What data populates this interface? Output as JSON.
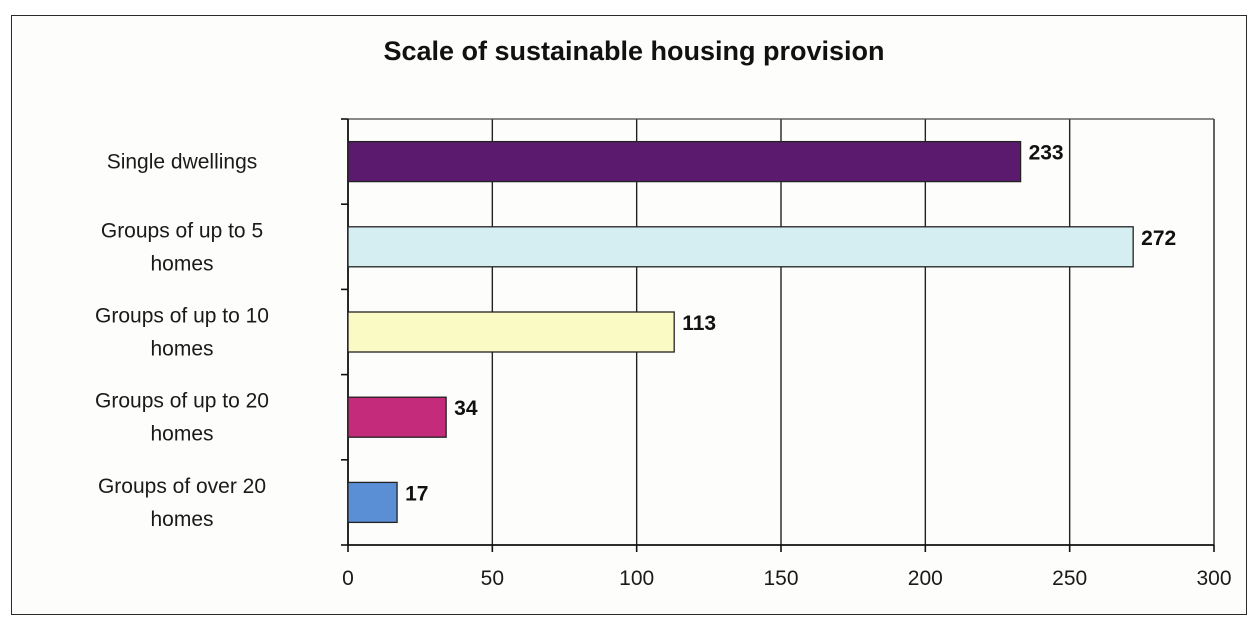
{
  "chart_data": {
    "type": "bar",
    "orientation": "horizontal",
    "title": "Scale of sustainable housing provision",
    "categories": [
      "Single dwellings",
      "Groups of up to 5 homes",
      "Groups of up to 10 homes",
      "Groups of up to 20 homes",
      "Groups of over 20 homes"
    ],
    "values": [
      233,
      272,
      113,
      34,
      17
    ],
    "colors": [
      "#5b1a6e",
      "#d5eef2",
      "#fafac4",
      "#c42b7a",
      "#5a8fd6"
    ],
    "xlim": [
      0,
      300
    ],
    "xticks": [
      0,
      50,
      100,
      150,
      200,
      250,
      300
    ],
    "xlabel": "",
    "ylabel": "",
    "grid": true,
    "data_labels": true
  }
}
